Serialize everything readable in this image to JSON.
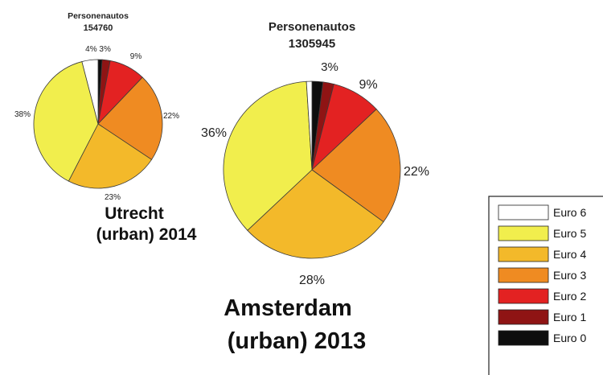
{
  "chart_data": [
    {
      "type": "pie",
      "title_line1": "Personenautos",
      "title_line2": "154760",
      "caption_line1": "Utrecht",
      "caption_line2": "(urban) 2014",
      "slices": [
        {
          "name": "Euro 6",
          "value": 4,
          "label": "4%",
          "color": "#ffffff"
        },
        {
          "name": "Euro 5",
          "value": 38,
          "label": "38%",
          "color": "#f1ee4d"
        },
        {
          "name": "Euro 4",
          "value": 23,
          "label": "23%",
          "color": "#f3b92a"
        },
        {
          "name": "Euro 3",
          "value": 22,
          "label": "22%",
          "color": "#ef8b22"
        },
        {
          "name": "Euro 2",
          "value": 9,
          "label": "9%",
          "color": "#e32222"
        },
        {
          "name": "Euro 1",
          "value": 2,
          "label": "",
          "color": "#8f1414"
        },
        {
          "name": "Euro 0",
          "value": 1,
          "label": "",
          "color": "#0e0e0e"
        }
      ],
      "top_label": "3%"
    },
    {
      "type": "pie",
      "title_line1": "Personenautos",
      "title_line2": "1305945",
      "caption_line1": "Amsterdam",
      "caption_line2": "(urban) 2013",
      "slices": [
        {
          "name": "Euro 6",
          "value": 1,
          "label": "",
          "color": "#ffffff"
        },
        {
          "name": "Euro 5",
          "value": 36,
          "label": "36%",
          "color": "#f1ee4d"
        },
        {
          "name": "Euro 4",
          "value": 28,
          "label": "28%",
          "color": "#f3b92a"
        },
        {
          "name": "Euro 3",
          "value": 22,
          "label": "22%",
          "color": "#ef8b22"
        },
        {
          "name": "Euro 2",
          "value": 9,
          "label": "9%",
          "color": "#e32222"
        },
        {
          "name": "Euro 1",
          "value": 2,
          "label": "",
          "color": "#8f1414"
        },
        {
          "name": "Euro 0",
          "value": 2,
          "label": "",
          "color": "#0e0e0e"
        }
      ],
      "top_label": "3%"
    }
  ],
  "legend": [
    {
      "label": "Euro 6",
      "color": "#ffffff"
    },
    {
      "label": "Euro 5",
      "color": "#f1ee4d"
    },
    {
      "label": "Euro 4",
      "color": "#f3b92a"
    },
    {
      "label": "Euro 3",
      "color": "#ef8b22"
    },
    {
      "label": "Euro 2",
      "color": "#e32222"
    },
    {
      "label": "Euro 1",
      "color": "#8f1414"
    },
    {
      "label": "Euro 0",
      "color": "#0e0e0e"
    }
  ]
}
